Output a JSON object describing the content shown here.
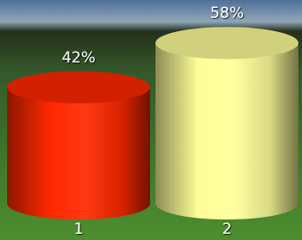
{
  "chart_data": {
    "type": "bar",
    "categories": [
      "1",
      "2"
    ],
    "values": [
      42,
      58
    ],
    "value_labels": [
      "42%",
      "58%"
    ],
    "colors": [
      "#ff2800",
      "#ffff99"
    ]
  }
}
